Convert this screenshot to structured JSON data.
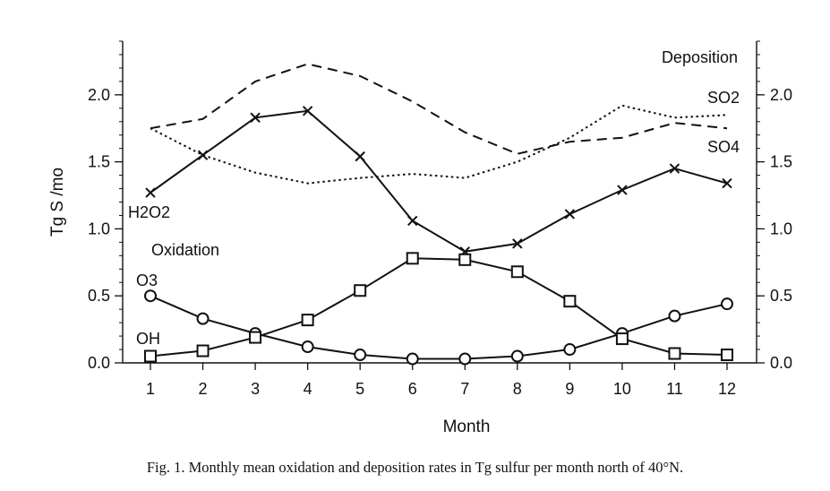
{
  "chart_data": {
    "type": "line",
    "categories": [
      "1",
      "2",
      "3",
      "4",
      "5",
      "6",
      "7",
      "8",
      "9",
      "10",
      "11",
      "12"
    ],
    "xlabel": "Month",
    "ylabel": "Tg S /mo",
    "ylim": [
      0,
      2.4
    ],
    "yticks": [
      "0.0",
      "0.5",
      "1.0",
      "1.5",
      "2.0"
    ],
    "right_yticks": [
      "0.0",
      "0.5",
      "1.0",
      "1.5",
      "2.0"
    ],
    "grid": false,
    "group_labels": {
      "oxidation": "Oxidation",
      "deposition": "Deposition"
    },
    "series": [
      {
        "name": "H2O2",
        "group": "oxidation",
        "marker": "x",
        "dash": "solid",
        "values": [
          1.27,
          1.55,
          1.83,
          1.88,
          1.54,
          1.06,
          0.83,
          0.89,
          1.11,
          1.29,
          1.45,
          1.34
        ]
      },
      {
        "name": "O3",
        "group": "oxidation",
        "marker": "circle",
        "dash": "solid",
        "values": [
          0.5,
          0.33,
          0.22,
          0.12,
          0.06,
          0.03,
          0.03,
          0.05,
          0.1,
          0.22,
          0.35,
          0.44
        ]
      },
      {
        "name": "OH",
        "group": "oxidation",
        "marker": "square",
        "dash": "solid",
        "values": [
          0.05,
          0.09,
          0.19,
          0.32,
          0.54,
          0.78,
          0.77,
          0.68,
          0.46,
          0.18,
          0.07,
          0.06
        ]
      },
      {
        "name": "SO2",
        "group": "deposition",
        "marker": "none",
        "dash": "dotted",
        "values": [
          1.75,
          1.55,
          1.42,
          1.34,
          1.38,
          1.41,
          1.38,
          1.5,
          1.68,
          1.92,
          1.83,
          1.85
        ]
      },
      {
        "name": "SO4",
        "group": "deposition",
        "marker": "none",
        "dash": "dashed",
        "values": [
          1.75,
          1.82,
          2.1,
          2.23,
          2.14,
          1.95,
          1.72,
          1.56,
          1.65,
          1.68,
          1.79,
          1.75
        ]
      }
    ]
  },
  "top_text": "",
  "caption": "Fig. 1. Monthly mean oxidation and deposition rates in Tg sulfur per month north of 40°N."
}
